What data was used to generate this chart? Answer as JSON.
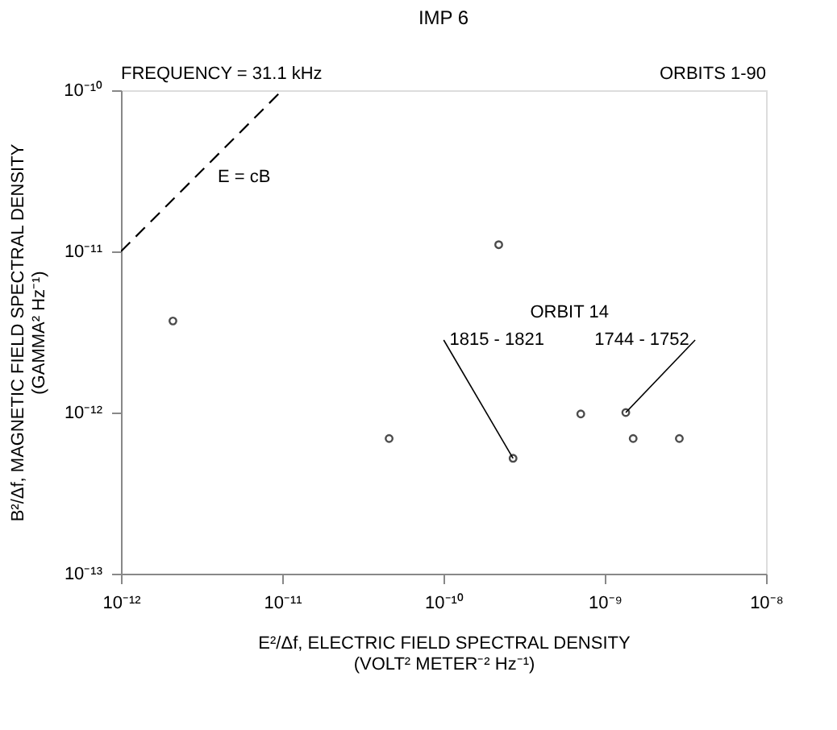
{
  "chart_data": {
    "type": "scatter",
    "title": "IMP 6",
    "xlabel": "E²/Δf, ELECTRIC FIELD SPECTRAL DENSITY\n(VOLT² METER⁻² Hz⁻¹)",
    "ylabel": "B²/Δf, MAGNETIC FIELD SPECTRAL DENSITY\n(GAMMA² Hz⁻¹)",
    "log": "xy",
    "marker": "circle",
    "grid": false,
    "xlim": [
      1e-12,
      1e-08
    ],
    "ylim": [
      1e-13,
      1e-10
    ],
    "xticks": [
      {
        "value": 1e-12,
        "label": "10⁻¹²"
      },
      {
        "value": 1e-11,
        "label": "10⁻¹¹"
      },
      {
        "value": 1e-10,
        "label": "10⁻¹⁰"
      },
      {
        "value": 1e-09,
        "label": "10⁻⁹"
      },
      {
        "value": 1e-08,
        "label": "10⁻⁸"
      }
    ],
    "yticks": [
      {
        "value": 1e-13,
        "label": "10⁻¹³"
      },
      {
        "value": 1e-12,
        "label": "10⁻¹²"
      },
      {
        "value": 1e-11,
        "label": "10⁻¹¹"
      },
      {
        "value": 1e-10,
        "label": "10⁻¹⁰"
      }
    ],
    "series": [
      {
        "color": "#000000",
        "x": [
          2.1e-12,
          4.6e-11,
          2.2e-10,
          2.7e-10,
          7.1e-10,
          1.35e-09,
          1.5e-09,
          2.9e-09
        ],
        "values": [
          3.7e-12,
          6.9e-13,
          1.1e-11,
          5.2e-13,
          9.8e-13,
          1e-12,
          6.9e-13,
          6.9e-13
        ]
      },
      {
        "type": "line",
        "name": "E = cB",
        "color": "#000000",
        "line_style": "dashed",
        "marker": "none",
        "x": [
          1e-12,
          1e-11
        ],
        "values": [
          1e-11,
          1e-10
        ]
      }
    ],
    "annotations": [
      "FREQUENCY = 31.1 kHz",
      "ORBITS 1-90",
      "ORBIT 14",
      {
        "text": "1815 - 1821",
        "x": 2.7e-10,
        "y": 5.2e-13
      },
      {
        "text": "1744 - 1752",
        "x": 1.35e-09,
        "y": 1e-12
      }
    ]
  }
}
